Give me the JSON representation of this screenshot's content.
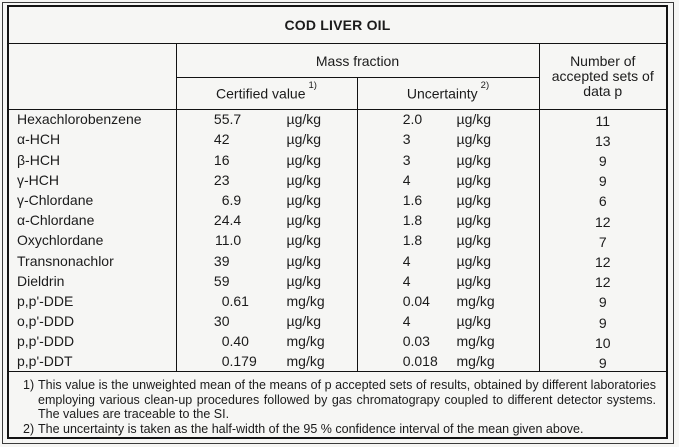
{
  "title": "COD LIVER OIL",
  "columns": {
    "mass_fraction": "Mass fraction",
    "certified_value": "Certified value",
    "certified_sup": "1)",
    "uncertainty": "Uncertainty",
    "uncertainty_sup": "2)",
    "accepted_sets": "Number of accepted sets of data p"
  },
  "rows": [
    {
      "name": "Hexachlorobenzene",
      "certified_value": "55.7",
      "certified_unit": "µg/kg",
      "uncertainty_value": "2.0",
      "uncertainty_unit": "µg/kg",
      "p": "11"
    },
    {
      "name": "α-HCH",
      "certified_value": "42",
      "certified_unit": "µg/kg",
      "uncertainty_value": "3",
      "uncertainty_unit": "µg/kg",
      "p": "13"
    },
    {
      "name": "β-HCH",
      "certified_value": "16",
      "certified_unit": "µg/kg",
      "uncertainty_value": "3",
      "uncertainty_unit": "µg/kg",
      "p": "9"
    },
    {
      "name": "γ-HCH",
      "certified_value": "23",
      "certified_unit": "µg/kg",
      "uncertainty_value": "4",
      "uncertainty_unit": "µg/kg",
      "p": "9"
    },
    {
      "name": "γ-Chlordane",
      "certified_value": "6.9",
      "certified_unit": "µg/kg",
      "uncertainty_value": "1.6",
      "uncertainty_unit": "µg/kg",
      "p": "6"
    },
    {
      "name": "α-Chlordane",
      "certified_value": "24.4",
      "certified_unit": "µg/kg",
      "uncertainty_value": "1.8",
      "uncertainty_unit": "µg/kg",
      "p": "12"
    },
    {
      "name": "Oxychlordane",
      "certified_value": "11.0",
      "certified_unit": "µg/kg",
      "uncertainty_value": "1.8",
      "uncertainty_unit": "µg/kg",
      "p": "7"
    },
    {
      "name": "Transnonachlor",
      "certified_value": "39",
      "certified_unit": "µg/kg",
      "uncertainty_value": "4",
      "uncertainty_unit": "µg/kg",
      "p": "12"
    },
    {
      "name": "Dieldrin",
      "certified_value": "59",
      "certified_unit": "µg/kg",
      "uncertainty_value": "4",
      "uncertainty_unit": "µg/kg",
      "p": "12"
    },
    {
      "name": "p,p'-DDE",
      "certified_value": "0.61",
      "certified_unit": "mg/kg",
      "uncertainty_value": "0.04",
      "uncertainty_unit": "mg/kg",
      "p": "9"
    },
    {
      "name": "o,p'-DDD",
      "certified_value": "30",
      "certified_unit": "µg/kg",
      "uncertainty_value": "4",
      "uncertainty_unit": "µg/kg",
      "p": "9"
    },
    {
      "name": "p,p'-DDD",
      "certified_value": "0.40",
      "certified_unit": "mg/kg",
      "uncertainty_value": "0.03",
      "uncertainty_unit": "mg/kg",
      "p": "10"
    },
    {
      "name": "p,p'-DDT",
      "certified_value": "0.179",
      "certified_unit": "mg/kg",
      "uncertainty_value": "0.018",
      "uncertainty_unit": "mg/kg",
      "p": "9"
    }
  ],
  "footnotes": [
    {
      "marker": "1)",
      "text": "This value is the unweighted mean of the means of p accepted sets of results, obtained by different laboratories employing various clean-up procedures followed by gas chromatograpy coupled to different detector systems. The values are traceable to the SI."
    },
    {
      "marker": "2)",
      "text": "The uncertainty is taken as the half-width of the 95 % confidence interval of the mean given above."
    }
  ],
  "colors": {
    "background": "#f6f6f4",
    "border": "#121212",
    "text": "#1b1b1b"
  }
}
